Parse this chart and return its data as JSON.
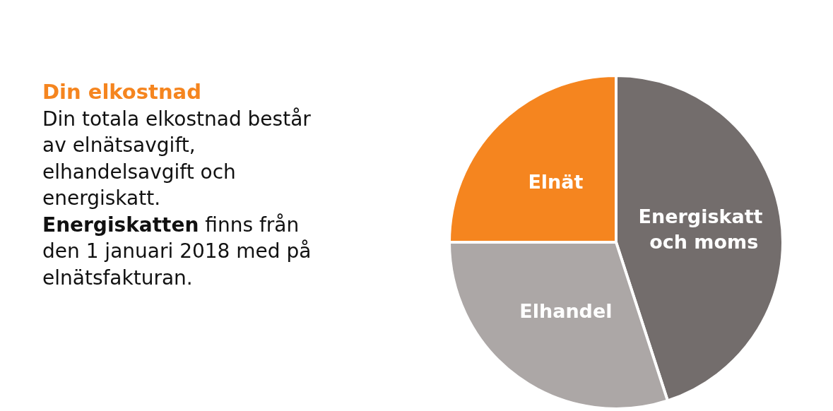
{
  "chart_data": {
    "type": "pie",
    "title": "Din elkostnad",
    "annotations": [
      "Din totala elkostnad består av elnätsavgift, elhandelsavgift och energiskatt.",
      "Energiskatten finns från den 1 januari 2018 med på elnätsfakturan."
    ],
    "categories": [
      "Energiskatt och moms",
      "Elhandel",
      "Elnät"
    ],
    "values": [
      45,
      30,
      25
    ],
    "colors": [
      "#736d6c",
      "#aca7a6",
      "#f5851f"
    ],
    "legend": false
  }
}
